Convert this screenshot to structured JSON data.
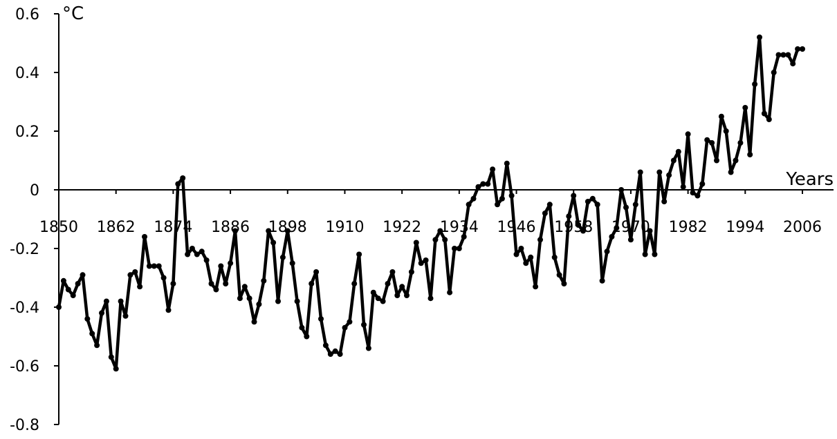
{
  "chart_data": {
    "type": "line",
    "title": "",
    "xlabel": "Years",
    "ylabel": "°C",
    "xlim": [
      1850,
      2006
    ],
    "ylim": [
      -0.8,
      0.6
    ],
    "yticks": [
      0.6,
      0.4,
      0.2,
      0,
      -0.2,
      -0.4,
      -0.6,
      -0.8
    ],
    "ytick_labels": [
      "0.6",
      "0.4",
      "0.2",
      "0",
      "-0.2",
      "-0.4",
      "-0.6",
      "-0.8"
    ],
    "xticks": [
      1850,
      1862,
      1874,
      1886,
      1898,
      1910,
      1922,
      1934,
      1946,
      1958,
      1970,
      1982,
      1994,
      2006
    ],
    "xtick_labels": [
      "1850",
      "1862",
      "1874",
      "1886",
      "1898",
      "1910",
      "1922",
      "1934",
      "1946",
      "1958",
      "1970",
      "1982",
      "1994",
      "2006"
    ],
    "grid": false,
    "line_color": "#000000",
    "x": [
      1850,
      1851,
      1852,
      1853,
      1854,
      1855,
      1856,
      1857,
      1858,
      1859,
      1860,
      1861,
      1862,
      1863,
      1864,
      1865,
      1866,
      1867,
      1868,
      1869,
      1870,
      1871,
      1872,
      1873,
      1874,
      1875,
      1876,
      1877,
      1878,
      1879,
      1880,
      1881,
      1882,
      1883,
      1884,
      1885,
      1886,
      1887,
      1888,
      1889,
      1890,
      1891,
      1892,
      1893,
      1894,
      1895,
      1896,
      1897,
      1898,
      1899,
      1900,
      1901,
      1902,
      1903,
      1904,
      1905,
      1906,
      1907,
      1908,
      1909,
      1910,
      1911,
      1912,
      1913,
      1914,
      1915,
      1916,
      1917,
      1918,
      1919,
      1920,
      1921,
      1922,
      1923,
      1924,
      1925,
      1926,
      1927,
      1928,
      1929,
      1930,
      1931,
      1932,
      1933,
      1934,
      1935,
      1936,
      1937,
      1938,
      1939,
      1940,
      1941,
      1942,
      1943,
      1944,
      1945,
      1946,
      1947,
      1948,
      1949,
      1950,
      1951,
      1952,
      1953,
      1954,
      1955,
      1956,
      1957,
      1958,
      1959,
      1960,
      1961,
      1962,
      1963,
      1964,
      1965,
      1966,
      1967,
      1968,
      1969,
      1970,
      1971,
      1972,
      1973,
      1974,
      1975,
      1976,
      1977,
      1978,
      1979,
      1980,
      1981,
      1982,
      1983,
      1984,
      1985,
      1986,
      1987,
      1988,
      1989,
      1990,
      1991,
      1992,
      1993,
      1994,
      1995,
      1996,
      1997,
      1998,
      1999,
      2000,
      2001,
      2002,
      2003,
      2004,
      2005,
      2006
    ],
    "y": [
      -0.4,
      -0.31,
      -0.34,
      -0.36,
      -0.32,
      -0.29,
      -0.44,
      -0.49,
      -0.53,
      -0.42,
      -0.38,
      -0.57,
      -0.61,
      -0.38,
      -0.43,
      -0.29,
      -0.28,
      -0.33,
      -0.16,
      -0.26,
      -0.26,
      -0.26,
      -0.3,
      -0.41,
      -0.32,
      0.02,
      0.04,
      -0.22,
      -0.2,
      -0.22,
      -0.21,
      -0.24,
      -0.32,
      -0.34,
      -0.26,
      -0.32,
      -0.25,
      -0.14,
      -0.37,
      -0.33,
      -0.37,
      -0.45,
      -0.39,
      -0.31,
      -0.14,
      -0.18,
      -0.38,
      -0.23,
      -0.14,
      -0.25,
      -0.38,
      -0.47,
      -0.5,
      -0.32,
      -0.28,
      -0.44,
      -0.53,
      -0.56,
      -0.55,
      -0.56,
      -0.47,
      -0.45,
      -0.32,
      -0.22,
      -0.46,
      -0.54,
      -0.35,
      -0.37,
      -0.38,
      -0.32,
      -0.28,
      -0.36,
      -0.33,
      -0.36,
      -0.28,
      -0.18,
      -0.25,
      -0.24,
      -0.37,
      -0.17,
      -0.14,
      -0.17,
      -0.35,
      -0.2,
      -0.2,
      -0.16,
      -0.05,
      -0.03,
      0.01,
      0.02,
      0.02,
      0.07,
      -0.05,
      -0.03,
      0.09,
      -0.02,
      -0.22,
      -0.2,
      -0.25,
      -0.23,
      -0.33,
      -0.17,
      -0.08,
      -0.05,
      -0.23,
      -0.29,
      -0.32,
      -0.09,
      -0.02,
      -0.12,
      -0.14,
      -0.04,
      -0.03,
      -0.05,
      -0.31,
      -0.21,
      -0.16,
      -0.13,
      0.0,
      -0.06,
      -0.17,
      -0.05,
      0.06,
      -0.22,
      -0.14,
      -0.22,
      0.06,
      -0.04,
      0.05,
      0.1,
      0.13,
      0.01,
      0.19,
      -0.01,
      -0.02,
      0.02,
      0.17,
      0.16,
      0.1,
      0.25,
      0.2,
      0.06,
      0.1,
      0.16,
      0.28,
      0.12,
      0.36,
      0.52,
      0.26,
      0.24,
      0.4,
      0.46,
      0.46,
      0.46,
      0.43,
      0.48,
      0.48
    ]
  }
}
